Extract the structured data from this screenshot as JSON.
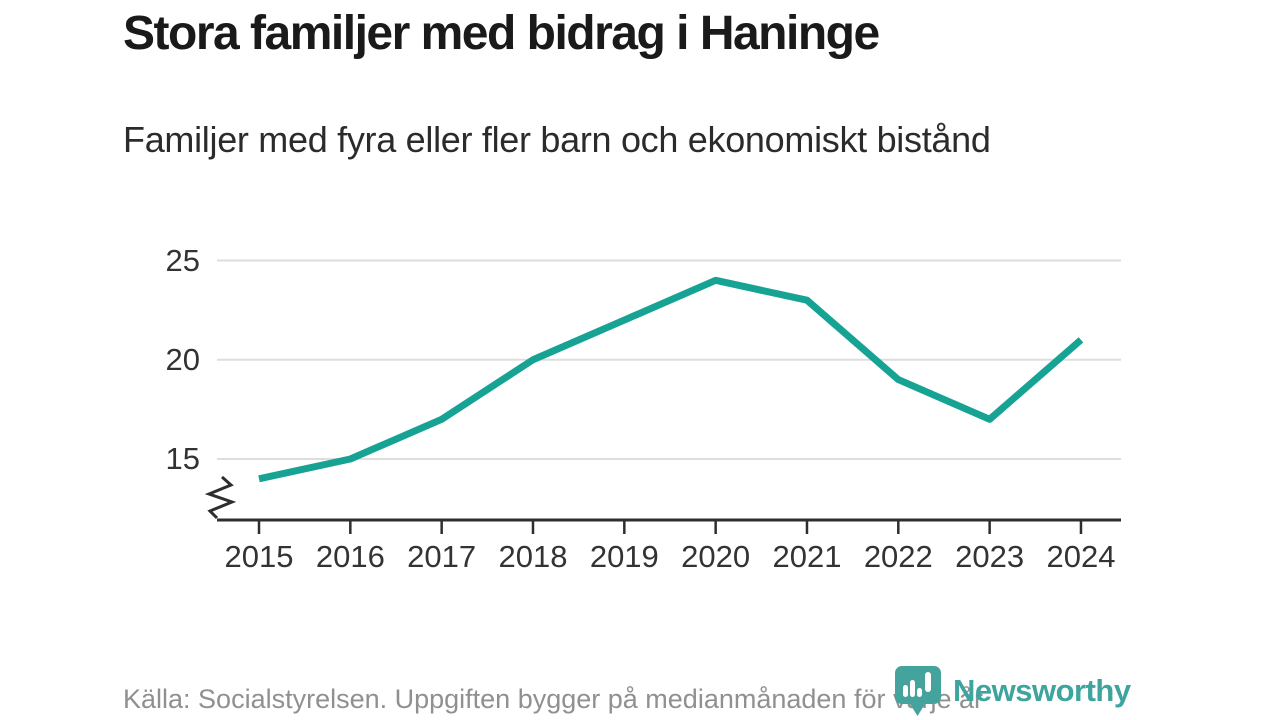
{
  "header": {
    "title": "Stora familjer med bidrag i Haninge",
    "subtitle": "Familjer med fyra eller fler barn och ekonomiskt bistånd"
  },
  "chart_data": {
    "type": "line",
    "x": [
      2015,
      2016,
      2017,
      2018,
      2019,
      2020,
      2021,
      2022,
      2023,
      2024
    ],
    "values": [
      14,
      15,
      17,
      20,
      22,
      24,
      23,
      19,
      17,
      21
    ],
    "yticks": [
      15,
      20,
      25
    ],
    "ylim": [
      13,
      25.5
    ],
    "axis_break": true,
    "grid": "horizontal-only",
    "legend": "none",
    "title": "Stora familjer med bidrag i Haninge",
    "subtitle": "Familjer med fyra eller fler barn och ekonomiskt bistånd",
    "xlabel": "",
    "ylabel": ""
  },
  "footer": {
    "source": "Källa: Socialstyrelsen. Uppgiften bygger på medianmånaden för varje år",
    "brand": "Newsworthy"
  },
  "colors": {
    "line": "#16a394",
    "grid": "#dddddd",
    "axis": "#2e2e2e",
    "tick_label": "#333333",
    "title": "#1a1a1a",
    "subtitle": "#2b2b2b",
    "source": "#909090",
    "brand": "#3da49e",
    "logo_bg": "#45a39d",
    "logo_fg": "#ffffff"
  }
}
